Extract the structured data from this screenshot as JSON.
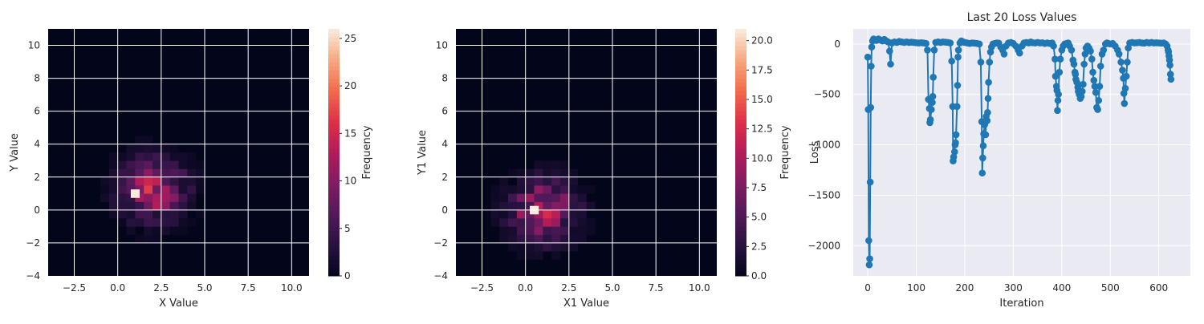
{
  "chart_data": [
    {
      "type": "heatmap",
      "title": "",
      "xlabel": "X Value",
      "ylabel": "Y Value",
      "xlim": [
        -4,
        11
      ],
      "ylim": [
        -4,
        11
      ],
      "xticks": [
        -2.5,
        0.0,
        2.5,
        5.0,
        7.5,
        10.0
      ],
      "xtick_labels": [
        "−2.5",
        "0.0",
        "2.5",
        "5.0",
        "7.5",
        "10.0"
      ],
      "yticks": [
        -4,
        -2,
        0,
        2,
        4,
        6,
        8,
        10
      ],
      "ytick_labels": [
        "−4",
        "−2",
        "0",
        "2",
        "4",
        "6",
        "8",
        "10"
      ],
      "grid": true,
      "colormap": "rocket",
      "colorbar": {
        "label": "Frequency",
        "range": [
          0,
          26
        ],
        "ticks": [
          0,
          5,
          10,
          15,
          20,
          25
        ],
        "tick_labels": [
          "0",
          "5",
          "10",
          "15",
          "20",
          "25"
        ]
      },
      "bins": 30,
      "center": [
        2.0,
        1.3
      ],
      "peak_cell": {
        "x": 1.0,
        "y": 1.0,
        "value": 26
      },
      "max_count": 26
    },
    {
      "type": "heatmap",
      "title": "",
      "xlabel": "X1 Value",
      "ylabel": "Y1 Value",
      "xlim": [
        -4,
        11
      ],
      "ylim": [
        -4,
        11
      ],
      "xticks": [
        -2.5,
        0.0,
        2.5,
        5.0,
        7.5,
        10.0
      ],
      "xtick_labels": [
        "−2.5",
        "0.0",
        "2.5",
        "5.0",
        "7.5",
        "10.0"
      ],
      "yticks": [
        -4,
        -2,
        0,
        2,
        4,
        6,
        8,
        10
      ],
      "ytick_labels": [
        "−4",
        "−2",
        "0",
        "2",
        "4",
        "6",
        "8",
        "10"
      ],
      "grid": true,
      "colormap": "rocket",
      "colorbar": {
        "label": "Frequency",
        "range": [
          0,
          21
        ],
        "ticks": [
          0,
          2.5,
          5,
          7.5,
          10,
          12.5,
          15,
          17.5,
          20
        ],
        "tick_labels": [
          "0.0",
          "2.5",
          "5.0",
          "7.5",
          "10.0",
          "12.5",
          "15.0",
          "17.5",
          "20.0"
        ]
      },
      "bins": 30,
      "center": [
        1.0,
        0.0
      ],
      "peak_cell": {
        "x": 0.5,
        "y": 0.0,
        "value": 21
      },
      "max_count": 21
    },
    {
      "type": "line",
      "title": "Last 20 Loss Values",
      "xlabel": "Iteration",
      "ylabel": "Loss",
      "xlim": [
        -30,
        665
      ],
      "ylim": [
        -2300,
        150
      ],
      "xticks": [
        0,
        100,
        200,
        300,
        400,
        500,
        600
      ],
      "xtick_labels": [
        "0",
        "100",
        "200",
        "300",
        "400",
        "500",
        "600"
      ],
      "yticks": [
        -2000,
        -1500,
        -1000,
        -500,
        0
      ],
      "yticks_labels": [
        "−2000",
        "−1500",
        "−1000",
        "−500",
        "0"
      ],
      "grid": true,
      "background": "#eaeaf2",
      "color": "#1f77b4",
      "markers": true,
      "points": [
        [
          0,
          -130
        ],
        [
          1,
          -650
        ],
        [
          2,
          -1950
        ],
        [
          3,
          -2190
        ],
        [
          4,
          -2130
        ],
        [
          5,
          -1370
        ],
        [
          6,
          -630
        ],
        [
          7,
          -220
        ],
        [
          8,
          -30
        ],
        [
          10,
          30
        ],
        [
          12,
          50
        ],
        [
          15,
          40
        ],
        [
          18,
          35
        ],
        [
          22,
          50
        ],
        [
          26,
          40
        ],
        [
          30,
          30
        ],
        [
          34,
          45
        ],
        [
          38,
          30
        ],
        [
          42,
          20
        ],
        [
          45,
          -70
        ],
        [
          47,
          -200
        ],
        [
          50,
          10
        ],
        [
          55,
          20
        ],
        [
          60,
          15
        ],
        [
          65,
          25
        ],
        [
          70,
          20
        ],
        [
          75,
          15
        ],
        [
          80,
          20
        ],
        [
          85,
          15
        ],
        [
          90,
          18
        ],
        [
          95,
          15
        ],
        [
          100,
          12
        ],
        [
          105,
          10
        ],
        [
          110,
          12
        ],
        [
          115,
          10
        ],
        [
          120,
          5
        ],
        [
          123,
          -60
        ],
        [
          125,
          -550
        ],
        [
          127,
          -640
        ],
        [
          128,
          -780
        ],
        [
          129,
          -750
        ],
        [
          131,
          -650
        ],
        [
          133,
          -580
        ],
        [
          134,
          -520
        ],
        [
          135,
          -330
        ],
        [
          137,
          -60
        ],
        [
          140,
          15
        ],
        [
          145,
          20
        ],
        [
          150,
          15
        ],
        [
          155,
          20
        ],
        [
          160,
          18
        ],
        [
          165,
          15
        ],
        [
          170,
          10
        ],
        [
          173,
          -170
        ],
        [
          175,
          -620
        ],
        [
          176,
          -1160
        ],
        [
          177,
          -1120
        ],
        [
          179,
          -1070
        ],
        [
          180,
          -1000
        ],
        [
          181,
          -980
        ],
        [
          182,
          -900
        ],
        [
          184,
          -620
        ],
        [
          185,
          -410
        ],
        [
          186,
          -130
        ],
        [
          187,
          -60
        ],
        [
          190,
          10
        ],
        [
          193,
          30
        ],
        [
          197,
          20
        ],
        [
          200,
          15
        ],
        [
          205,
          10
        ],
        [
          210,
          5
        ],
        [
          215,
          10
        ],
        [
          220,
          8
        ],
        [
          225,
          5
        ],
        [
          230,
          0
        ],
        [
          233,
          -180
        ],
        [
          235,
          -770
        ],
        [
          236,
          -1280
        ],
        [
          237,
          -1130
        ],
        [
          238,
          -1010
        ],
        [
          239,
          -890
        ],
        [
          241,
          -800
        ],
        [
          243,
          -900
        ],
        [
          244,
          -720
        ],
        [
          246,
          -760
        ],
        [
          247,
          -680
        ],
        [
          248,
          -540
        ],
        [
          249,
          -380
        ],
        [
          251,
          -180
        ],
        [
          253,
          -80
        ],
        [
          255,
          -30
        ],
        [
          258,
          0
        ],
        [
          262,
          5
        ],
        [
          266,
          10
        ],
        [
          270,
          8
        ],
        [
          274,
          -30
        ],
        [
          278,
          -60
        ],
        [
          281,
          -100
        ],
        [
          285,
          -20
        ],
        [
          290,
          10
        ],
        [
          295,
          15
        ],
        [
          300,
          5
        ],
        [
          305,
          -20
        ],
        [
          310,
          -60
        ],
        [
          313,
          -90
        ],
        [
          318,
          -20
        ],
        [
          322,
          10
        ],
        [
          327,
          15
        ],
        [
          332,
          10
        ],
        [
          336,
          20
        ],
        [
          340,
          12
        ],
        [
          345,
          10
        ],
        [
          350,
          15
        ],
        [
          355,
          10
        ],
        [
          360,
          12
        ],
        [
          365,
          5
        ],
        [
          370,
          10
        ],
        [
          375,
          5
        ],
        [
          380,
          10
        ],
        [
          383,
          -20
        ],
        [
          386,
          -150
        ],
        [
          387,
          -320
        ],
        [
          389,
          -420
        ],
        [
          390,
          -460
        ],
        [
          391,
          -660
        ],
        [
          392,
          -560
        ],
        [
          393,
          -500
        ],
        [
          395,
          -280
        ],
        [
          397,
          -150
        ],
        [
          400,
          -60
        ],
        [
          403,
          -20
        ],
        [
          406,
          0
        ],
        [
          410,
          5
        ],
        [
          413,
          10
        ],
        [
          416,
          -20
        ],
        [
          420,
          -60
        ],
        [
          423,
          -160
        ],
        [
          425,
          -200
        ],
        [
          427,
          -280
        ],
        [
          428,
          -300
        ],
        [
          429,
          -350
        ],
        [
          431,
          -380
        ],
        [
          433,
          -430
        ],
        [
          434,
          -470
        ],
        [
          436,
          -500
        ],
        [
          438,
          -540
        ],
        [
          440,
          -520
        ],
        [
          442,
          -470
        ],
        [
          444,
          -400
        ],
        [
          446,
          -200
        ],
        [
          448,
          -100
        ],
        [
          450,
          -40
        ],
        [
          453,
          -20
        ],
        [
          456,
          -40
        ],
        [
          459,
          -70
        ],
        [
          462,
          -150
        ],
        [
          464,
          -280
        ],
        [
          466,
          -360
        ],
        [
          468,
          -420
        ],
        [
          470,
          -480
        ],
        [
          472,
          -630
        ],
        [
          474,
          -650
        ],
        [
          476,
          -560
        ],
        [
          478,
          -420
        ],
        [
          480,
          -220
        ],
        [
          483,
          -100
        ],
        [
          486,
          -60
        ],
        [
          490,
          0
        ],
        [
          493,
          10
        ],
        [
          496,
          5
        ],
        [
          500,
          0
        ],
        [
          505,
          5
        ],
        [
          510,
          -20
        ],
        [
          515,
          -60
        ],
        [
          518,
          -100
        ],
        [
          522,
          -180
        ],
        [
          525,
          -260
        ],
        [
          527,
          -340
        ],
        [
          528,
          -490
        ],
        [
          529,
          -590
        ],
        [
          531,
          -440
        ],
        [
          533,
          -320
        ],
        [
          535,
          -180
        ],
        [
          537,
          -40
        ],
        [
          540,
          10
        ],
        [
          545,
          15
        ],
        [
          550,
          10
        ],
        [
          555,
          12
        ],
        [
          560,
          15
        ],
        [
          565,
          10
        ],
        [
          570,
          8
        ],
        [
          575,
          15
        ],
        [
          580,
          10
        ],
        [
          585,
          15
        ],
        [
          590,
          10
        ],
        [
          595,
          12
        ],
        [
          600,
          10
        ],
        [
          605,
          8
        ],
        [
          610,
          10
        ],
        [
          614,
          0
        ],
        [
          617,
          -20
        ],
        [
          619,
          -60
        ],
        [
          620,
          -80
        ],
        [
          621,
          -120
        ],
        [
          622,
          -160
        ],
        [
          623,
          -210
        ],
        [
          624,
          -300
        ],
        [
          625,
          -350
        ]
      ]
    }
  ]
}
